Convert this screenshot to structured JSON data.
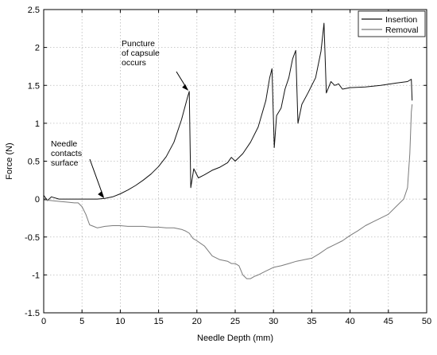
{
  "chart_data": {
    "type": "line",
    "xlabel": "Needle Depth (mm)",
    "ylabel": "Force (N)",
    "xlim": [
      0,
      50
    ],
    "ylim": [
      -1.5,
      2.5
    ],
    "xticks": [
      0,
      5,
      10,
      15,
      20,
      25,
      30,
      35,
      40,
      45,
      50
    ],
    "yticks": [
      2.5,
      2,
      1.5,
      1,
      0.5,
      0,
      -0.5,
      -1,
      -1.5
    ],
    "xtick_labels": [
      "0",
      "5",
      "10",
      "15",
      "20",
      "25",
      "30",
      "35",
      "40",
      "45",
      "50"
    ],
    "ytick_labels": [
      "2.5",
      "2",
      "1.5",
      "1",
      "0.5",
      "0",
      "-0.5",
      "-1",
      "-1.5"
    ],
    "grid": true,
    "legend": {
      "position": "top-right",
      "entries": [
        "Insertion",
        "Removal"
      ]
    },
    "colors": {
      "Insertion": "#111111",
      "Removal": "#7a7a7a"
    },
    "series": [
      {
        "name": "Insertion",
        "x": [
          0,
          0.5,
          1,
          2,
          3,
          4,
          5,
          6,
          7,
          8,
          9,
          10,
          11,
          12,
          13,
          14,
          15,
          16,
          17,
          18,
          18.8,
          19,
          19.2,
          19.6,
          20.2,
          21,
          22,
          23,
          24,
          24.5,
          25,
          26,
          27,
          28,
          29,
          29.5,
          29.8,
          30.1,
          30.4,
          31,
          31.5,
          32,
          32.5,
          32.9,
          33.2,
          33.7,
          34.5,
          35.5,
          36.2,
          36.6,
          36.9,
          37.5,
          38,
          38.5,
          39,
          40,
          42,
          44,
          46,
          47.5,
          48,
          48.1
        ],
        "y": [
          0.05,
          -0.02,
          0.03,
          0,
          0,
          0,
          0,
          0,
          0,
          0.01,
          0.03,
          0.07,
          0.12,
          0.18,
          0.25,
          0.33,
          0.43,
          0.56,
          0.75,
          1.05,
          1.35,
          1.42,
          0.15,
          0.4,
          0.28,
          0.32,
          0.38,
          0.42,
          0.48,
          0.55,
          0.5,
          0.6,
          0.75,
          0.95,
          1.3,
          1.6,
          1.72,
          0.68,
          1.1,
          1.2,
          1.45,
          1.6,
          1.85,
          1.96,
          1.0,
          1.25,
          1.4,
          1.6,
          1.95,
          2.32,
          1.4,
          1.55,
          1.5,
          1.52,
          1.45,
          1.47,
          1.48,
          1.5,
          1.53,
          1.55,
          1.58,
          1.3
        ]
      },
      {
        "name": "Removal",
        "x": [
          48.1,
          48,
          47.8,
          47.5,
          47,
          46,
          45,
          44,
          43,
          42,
          41,
          40,
          39,
          38,
          37,
          36,
          35,
          34,
          33,
          32,
          31,
          30,
          29,
          28,
          27.5,
          27,
          26.5,
          26,
          25.5,
          25,
          24.5,
          24,
          23,
          22,
          21,
          20,
          19.5,
          19,
          18.5,
          18,
          17,
          16,
          15,
          14,
          13,
          12,
          11,
          10,
          9,
          8,
          7,
          6.5,
          6,
          5.5,
          5,
          4.5,
          4,
          3,
          2,
          1,
          0
        ],
        "y": [
          1.25,
          1.15,
          0.6,
          0.15,
          0,
          -0.1,
          -0.2,
          -0.25,
          -0.3,
          -0.35,
          -0.42,
          -0.48,
          -0.55,
          -0.6,
          -0.65,
          -0.72,
          -0.78,
          -0.8,
          -0.82,
          -0.85,
          -0.88,
          -0.9,
          -0.95,
          -1.0,
          -1.02,
          -1.05,
          -1.05,
          -1.0,
          -0.88,
          -0.85,
          -0.85,
          -0.82,
          -0.8,
          -0.75,
          -0.62,
          -0.55,
          -0.52,
          -0.45,
          -0.42,
          -0.4,
          -0.38,
          -0.38,
          -0.37,
          -0.37,
          -0.36,
          -0.36,
          -0.36,
          -0.35,
          -0.35,
          -0.36,
          -0.38,
          -0.36,
          -0.34,
          -0.2,
          -0.1,
          -0.05,
          -0.05,
          -0.04,
          -0.03,
          -0.02,
          -0.01
        ]
      }
    ],
    "annotations": [
      {
        "lines": [
          "Puncture",
          "of capsule",
          "occurs"
        ],
        "x": 19,
        "y": 1.42
      },
      {
        "lines": [
          "Needle",
          "contacts",
          "surface"
        ],
        "x": 8,
        "y": 0
      }
    ]
  }
}
